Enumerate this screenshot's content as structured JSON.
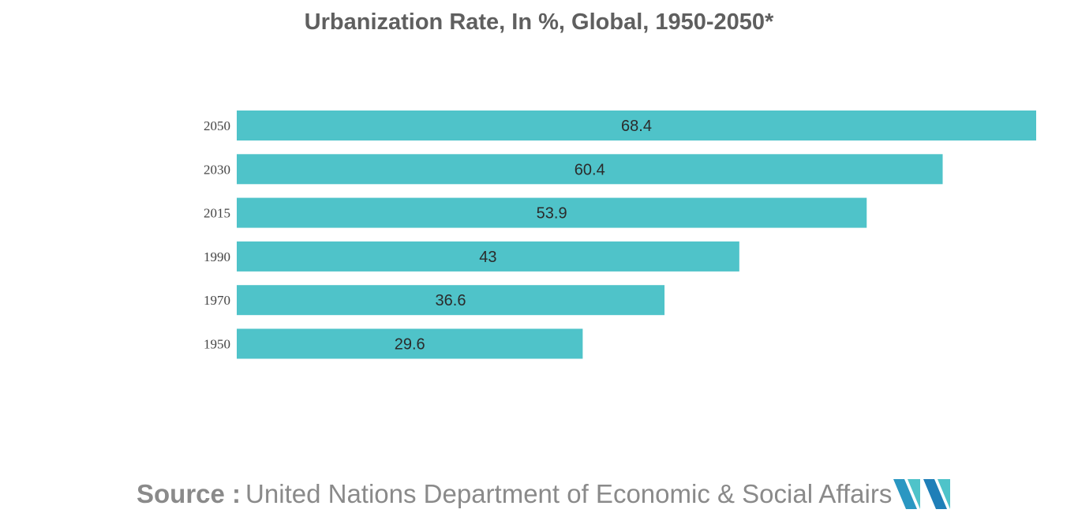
{
  "chart_data": {
    "type": "bar",
    "orientation": "horizontal",
    "title": "Urbanization Rate, In %, Global, 1950-2050*",
    "categories": [
      "2050",
      "2030",
      "2015",
      "1990",
      "1970",
      "1950"
    ],
    "values": [
      68.4,
      60.4,
      53.9,
      43,
      36.6,
      29.6
    ],
    "value_labels": [
      "68.4",
      "60.4",
      "53.9",
      "43",
      "36.6",
      "29.6"
    ],
    "xlabel": "",
    "ylabel": "",
    "xlim": [
      0,
      68.4
    ],
    "grid": false,
    "legend": "none",
    "bar_color": "#4fc3c9"
  },
  "footer": {
    "source_prefix": "Source :",
    "source_text": "United Nations Department of Economic & Social Affairs"
  },
  "logo": {
    "icon": "mordor-intelligence-logo-icon",
    "colors": [
      "#1f7fb8",
      "#4fc3c9",
      "#2a97c2"
    ]
  }
}
